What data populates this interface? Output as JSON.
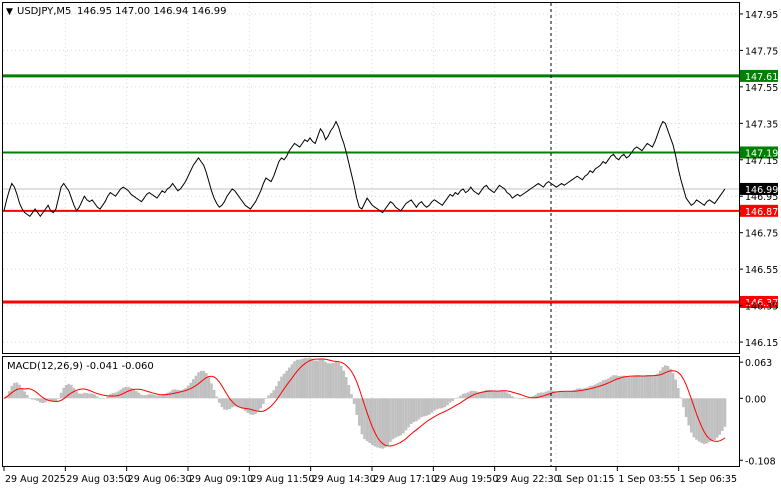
{
  "header": {
    "arrow": "▼",
    "symbol": "USDJPY,M5",
    "ohlc": "146.95 147.00 146.94 146.99"
  },
  "macd_header": {
    "label": "MACD(12,26,9) -0.041 -0.060"
  },
  "colors": {
    "background": "#ffffff",
    "frame": "#000000",
    "price_line": "#000000",
    "support_red": "#ff0000",
    "resist_green": "#008000",
    "histogram": "#c0c0c0",
    "signal": "#ff0000"
  },
  "chart_data": [
    {
      "type": "line",
      "x_axis_labels": [
        "29 Aug 2025",
        "29 Aug 03:50",
        "29 Aug 06:30",
        "29 Aug 09:10",
        "29 Aug 11:50",
        "29 Aug 14:30",
        "29 Aug 17:10",
        "29 Aug 19:50",
        "29 Aug 22:30",
        "1 Sep 01:15",
        "1 Sep 03:55",
        "1 Sep 06:35"
      ],
      "y_ticks": [
        "147.95",
        "147.75",
        "147.55",
        "147.35",
        "147.15",
        "146.95",
        "146.75",
        "146.55",
        "146.35",
        "146.15"
      ],
      "ylim": [
        146.09,
        148.01
      ],
      "series": [
        {
          "close": [
            146.87,
            146.93,
            146.98,
            147.02,
            147.0,
            146.96,
            146.91,
            146.88,
            146.86,
            146.85,
            146.84,
            146.86,
            146.88,
            146.86,
            146.84,
            146.86,
            146.88,
            146.9,
            146.87,
            146.86,
            146.88,
            146.94,
            147.0,
            147.02,
            147.0,
            146.98,
            146.94,
            146.9,
            146.87,
            146.89,
            146.92,
            146.95,
            146.93,
            146.92,
            146.93,
            146.91,
            146.89,
            146.88,
            146.9,
            146.92,
            146.95,
            146.97,
            146.96,
            146.95,
            146.97,
            146.99,
            147.0,
            146.99,
            146.98,
            146.96,
            146.95,
            146.94,
            146.93,
            146.92,
            146.94,
            146.96,
            146.97,
            146.96,
            146.95,
            146.94,
            146.96,
            146.98,
            146.97,
            146.99,
            147.0,
            147.02,
            147.0,
            146.98,
            146.99,
            147.01,
            147.03,
            147.06,
            147.09,
            147.12,
            147.14,
            147.16,
            147.14,
            147.12,
            147.08,
            147.03,
            146.98,
            146.94,
            146.91,
            146.89,
            146.9,
            146.92,
            146.95,
            146.97,
            146.99,
            146.98,
            146.96,
            146.94,
            146.92,
            146.9,
            146.89,
            146.88,
            146.9,
            146.92,
            146.95,
            146.98,
            147.02,
            147.05,
            147.04,
            147.03,
            147.06,
            147.1,
            147.14,
            147.16,
            147.15,
            147.17,
            147.2,
            147.22,
            147.24,
            147.23,
            147.22,
            147.24,
            147.26,
            147.25,
            147.27,
            147.25,
            147.24,
            147.28,
            147.32,
            147.3,
            147.26,
            147.28,
            147.31,
            147.33,
            147.36,
            147.33,
            147.28,
            147.24,
            147.19,
            147.13,
            147.07,
            147.01,
            146.94,
            146.89,
            146.88,
            146.91,
            146.94,
            146.92,
            146.9,
            146.89,
            146.88,
            146.87,
            146.86,
            146.88,
            146.9,
            146.92,
            146.91,
            146.89,
            146.88,
            146.87,
            146.89,
            146.91,
            146.92,
            146.93,
            146.91,
            146.89,
            146.91,
            146.92,
            146.9,
            146.89,
            146.9,
            146.92,
            146.93,
            146.92,
            146.91,
            146.9,
            146.92,
            146.94,
            146.96,
            146.95,
            146.97,
            146.96,
            146.98,
            146.99,
            146.97,
            146.98,
            147.0,
            146.98,
            146.97,
            146.96,
            146.98,
            147.0,
            147.01,
            146.99,
            146.98,
            146.97,
            146.99,
            147.01,
            147.0,
            146.99,
            146.97,
            146.96,
            146.94,
            146.95,
            146.96,
            146.95,
            146.96,
            146.97,
            146.98,
            146.99,
            147.0,
            147.01,
            147.02,
            147.01,
            147.0,
            147.02,
            147.03,
            147.02,
            147.01,
            147.0,
            147.01,
            147.02,
            147.01,
            147.02,
            147.03,
            147.04,
            147.05,
            147.06,
            147.05,
            147.04,
            147.06,
            147.07,
            147.09,
            147.08,
            147.1,
            147.11,
            147.12,
            147.14,
            147.13,
            147.15,
            147.17,
            147.18,
            147.16,
            147.15,
            147.17,
            147.18,
            147.16,
            147.17,
            147.19,
            147.21,
            147.22,
            147.21,
            147.2,
            147.22,
            147.24,
            147.23,
            147.22,
            147.25,
            147.29,
            147.33,
            147.36,
            147.35,
            147.31,
            147.27,
            147.23,
            147.17,
            147.1,
            147.04,
            146.99,
            146.94,
            146.92,
            146.9,
            146.91,
            146.93,
            146.92,
            146.91,
            146.9,
            146.92,
            146.93,
            146.92,
            146.91,
            146.93,
            146.95,
            146.97,
            146.99
          ]
        }
      ],
      "horizontal_levels": [
        {
          "value": 147.61,
          "label": "147.61",
          "color": "#008000"
        },
        {
          "value": 147.19,
          "label": "147.19",
          "color": "#008000"
        },
        {
          "value": 146.99,
          "label": "146.99",
          "color": "#000000",
          "current": true
        },
        {
          "value": 146.87,
          "label": "146.87",
          "color": "#ff0000"
        },
        {
          "value": 146.37,
          "label": "146.37",
          "color": "#ff0000"
        }
      ],
      "grid": true,
      "vertical_marker_label": "29 Aug 22:30"
    },
    {
      "type": "bar",
      "indicator": "MACD(12,26,9)",
      "y_ticks": [
        "0.063",
        "0.00",
        "-0.108"
      ],
      "ylim": [
        -0.118,
        0.072
      ]
    }
  ]
}
